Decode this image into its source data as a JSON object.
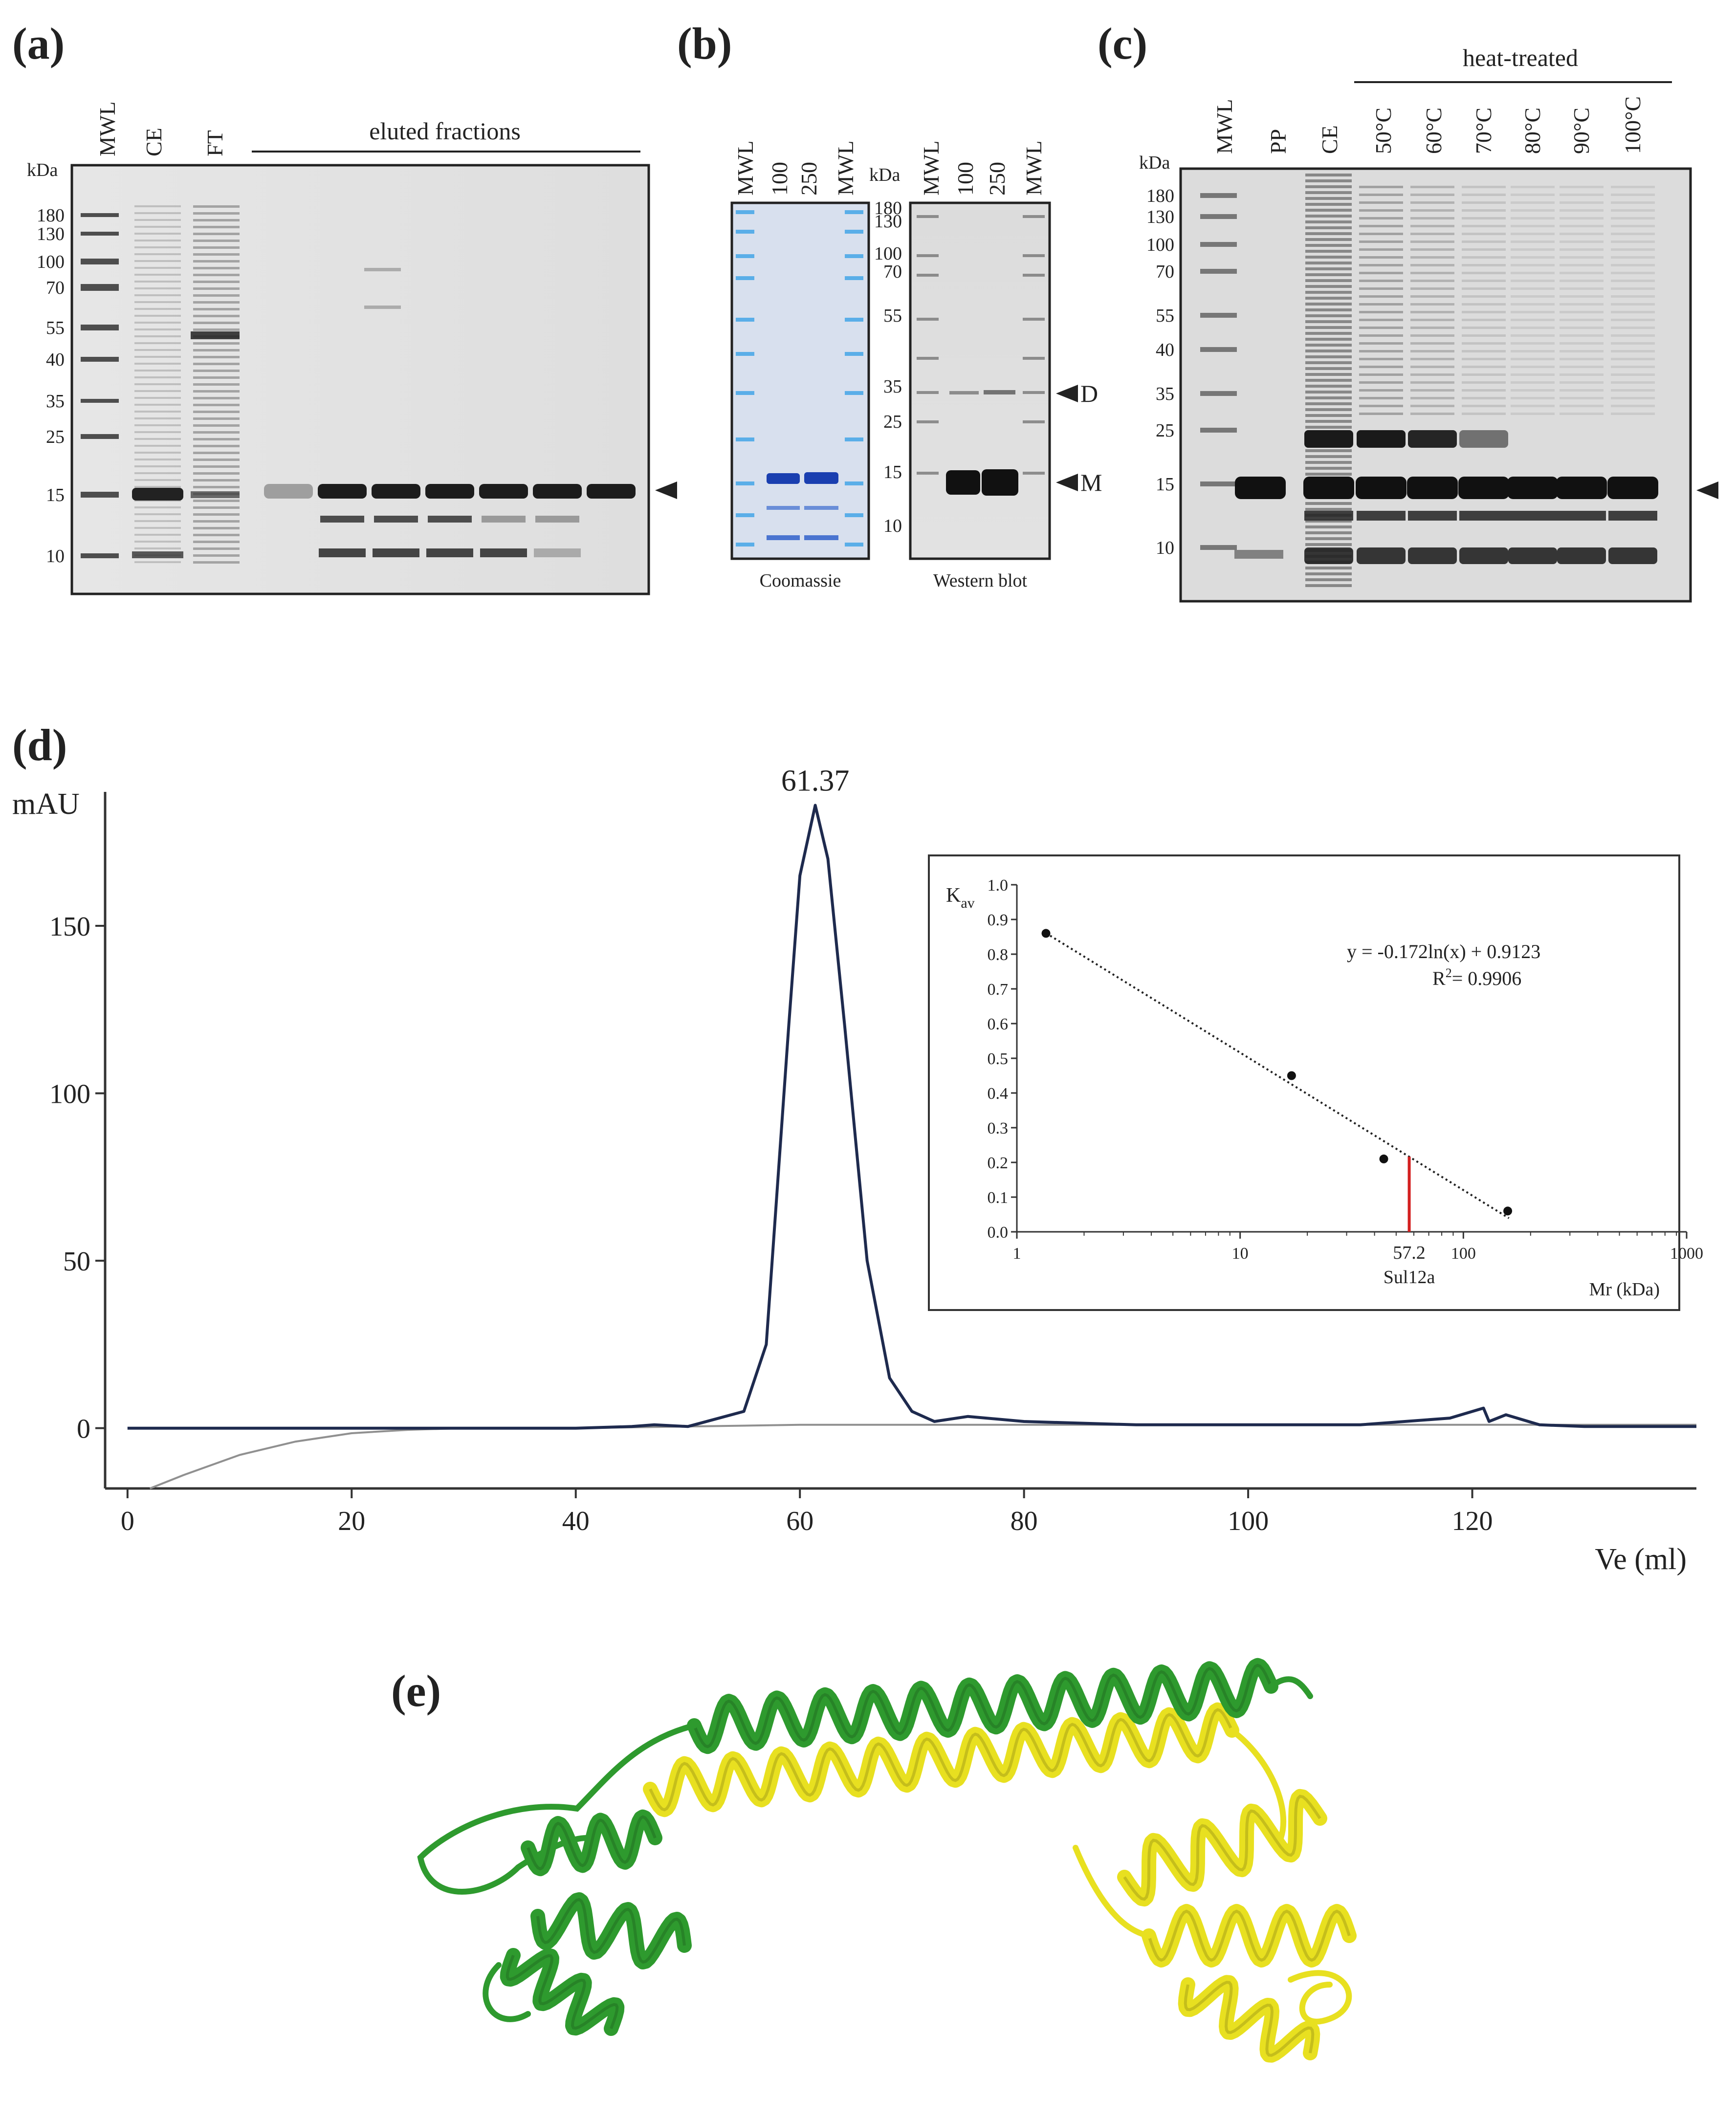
{
  "panel_a": {
    "label": "(a)",
    "kda": "kDa",
    "lanes": [
      "MWL",
      "CE",
      "FT"
    ],
    "group_label": "eluted fractions",
    "markers": [
      "180",
      "130",
      "100",
      "70",
      "55",
      "40",
      "35",
      "25",
      "15",
      "10"
    ]
  },
  "panel_b": {
    "label": "(b)",
    "left_lanes": [
      "MWL",
      "100",
      "250",
      "MWL"
    ],
    "right_lanes": [
      "MWL",
      "100",
      "250",
      "MWL"
    ],
    "kda": "kDa",
    "markers": [
      "180",
      "130",
      "100",
      "70",
      "55",
      "35",
      "25",
      "15",
      "10"
    ],
    "dimer_label": "D",
    "monomer_label": "M",
    "left_caption": "Coomassie",
    "right_caption": "Western blot",
    "coomassie_color": "#5aaee8"
  },
  "panel_c": {
    "label": "(c)",
    "kda": "kDa",
    "group_label": "heat-treated",
    "lanes": [
      "MWL",
      "PP",
      "CE",
      "50°C",
      "60°C",
      "70°C",
      "80°C",
      "90°C",
      "100°C"
    ],
    "markers": [
      "180",
      "130",
      "100",
      "70",
      "55",
      "40",
      "35",
      "25",
      "15",
      "10"
    ]
  },
  "panel_d": {
    "label": "(d)",
    "chart_data": [
      {
        "type": "line",
        "ylabel": "mAU",
        "xlabel": "Ve (ml)",
        "xlim": [
          -2,
          140
        ],
        "ylim": [
          -18,
          190
        ],
        "xticks": [
          "0",
          "20",
          "40",
          "60",
          "80",
          "100",
          "120"
        ],
        "yticks": [
          "0",
          "50",
          "100",
          "150"
        ],
        "annotation": "61.37",
        "series": [
          {
            "color": "#1e2a4e",
            "x": [
              0,
              20,
              40,
              45,
              47,
              50,
              55,
              57,
              59,
              60,
              61.37,
              62.5,
              64,
              66,
              68,
              70,
              72,
              75,
              80,
              90,
              100,
              110,
              118,
              121,
              121.5,
              123,
              126,
              130,
              140
            ],
            "y": [
              0,
              0,
              0,
              0.5,
              1,
              0.5,
              5,
              25,
              120,
              165,
              186,
              170,
              120,
              50,
              15,
              5,
              2,
              3.5,
              2,
              1,
              1,
              1,
              3,
              6,
              2,
              4,
              1,
              0.5,
              0.5
            ]
          },
          {
            "color": "#909090",
            "x": [
              2,
              5,
              10,
              15,
              20,
              25,
              30,
              40,
              60,
              80,
              100,
              121,
              140
            ],
            "y": [
              -18,
              -14,
              -8,
              -4,
              -1.5,
              -0.5,
              0,
              0,
              1,
              1,
              1,
              1,
              1
            ]
          }
        ]
      },
      {
        "type": "scatter",
        "xscale": "log",
        "xlim": [
          1,
          1000
        ],
        "ylim": [
          0,
          1.0
        ],
        "ylabel_main": "K",
        "ylabel_sub": "av",
        "xlabel": "Mr (kDa)",
        "xticks": [
          "1",
          "10",
          "100",
          "1000"
        ],
        "yticks": [
          "0.0",
          "0.1",
          "0.2",
          "0.3",
          "0.4",
          "0.5",
          "0.6",
          "0.7",
          "0.8",
          "0.9",
          "1.0"
        ],
        "equation": "y = -0.172ln(x) + 0.9123",
        "r2_label": "R",
        "r2_exp": "2",
        "r2_value": "= 0.9906",
        "points": [
          {
            "x": 1.35,
            "y": 0.86
          },
          {
            "x": 17,
            "y": 0.45
          },
          {
            "x": 44,
            "y": 0.21
          },
          {
            "x": 158,
            "y": 0.06
          }
        ],
        "fit": {
          "slope": -0.172,
          "intercept": 0.9123
        },
        "marker_x": 57.2,
        "marker_label": "57.2",
        "marker_name": "Sul12a",
        "marker_color": "#d42020"
      }
    ]
  },
  "panel_e": {
    "label": "(e)",
    "chain_a_color": "#2e9a2e",
    "chain_b_color": "#e8e020"
  }
}
